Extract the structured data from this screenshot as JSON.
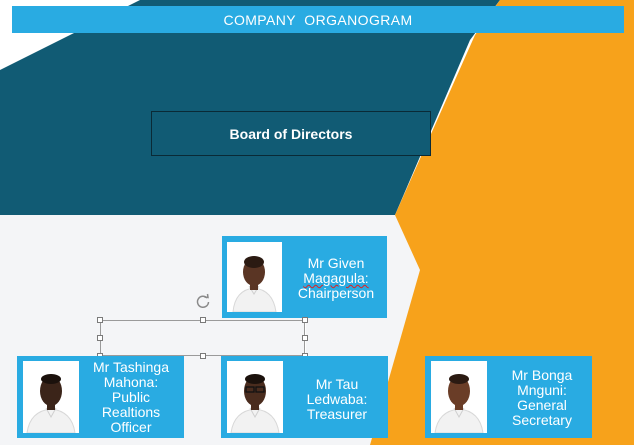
{
  "title": "COMPANY  ORGANOGRAM",
  "board": {
    "label": "Board of Directors"
  },
  "chair": {
    "lines": [
      "Mr Given",
      "Magagula:",
      "Chairperson"
    ]
  },
  "members": [
    {
      "lines": [
        "Mr Tashinga",
        "Mahona:",
        "Public",
        "Realtions",
        "Officer"
      ]
    },
    {
      "lines": [
        "Mr Tau",
        "Ledwaba:",
        "Treasurer"
      ]
    },
    {
      "lines": [
        "Mr Bonga",
        "Mnguni:",
        "General",
        "Secretary"
      ]
    }
  ],
  "colors": {
    "teal": "#115b74",
    "orange": "#f7a21b",
    "card_blue": "#29abe2"
  },
  "icons": {
    "rotate": "rotate-handle-icon",
    "person": "person-photo-icon"
  }
}
